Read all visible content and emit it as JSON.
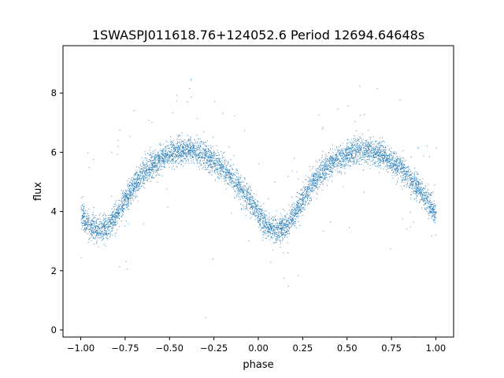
{
  "chart_data": {
    "type": "scatter",
    "title": "1SWASPJ011618.76+124052.6 Period 12694.64648s",
    "xlabel": "phase",
    "ylabel": "flux",
    "xlim": [
      -1.1,
      1.1
    ],
    "ylim": [
      -0.24,
      9.6
    ],
    "grid": false,
    "legend": "none",
    "x_ticks": [
      {
        "value": -1.0,
        "label": "−1.00"
      },
      {
        "value": -0.75,
        "label": "−0.75"
      },
      {
        "value": -0.5,
        "label": "−0.50"
      },
      {
        "value": -0.25,
        "label": "−0.25"
      },
      {
        "value": 0.0,
        "label": "0.00"
      },
      {
        "value": 0.25,
        "label": "0.25"
      },
      {
        "value": 0.5,
        "label": "0.50"
      },
      {
        "value": 0.75,
        "label": "0.75"
      },
      {
        "value": 1.0,
        "label": "1.00"
      }
    ],
    "y_ticks": [
      {
        "value": 0,
        "label": "0"
      },
      {
        "value": 2,
        "label": "2"
      },
      {
        "value": 4,
        "label": "4"
      },
      {
        "value": 6,
        "label": "6"
      },
      {
        "value": 8,
        "label": "8"
      }
    ],
    "series": [
      {
        "name": "flux",
        "color": "#1f77b4",
        "phase_range": [
          -1.0,
          1.0
        ],
        "point_count_approx": 6000,
        "scatter_sd": 0.22,
        "outlier_fraction": 0.02,
        "binned_phase": [
          0.0,
          0.05,
          0.1,
          0.15,
          0.2,
          0.25,
          0.3,
          0.35,
          0.4,
          0.45,
          0.5,
          0.55,
          0.6,
          0.65,
          0.7,
          0.75,
          0.8,
          0.85,
          0.9,
          0.95,
          1.0
        ],
        "binned_flux": [
          3.9,
          3.5,
          3.4,
          3.5,
          3.9,
          4.4,
          4.9,
          5.3,
          5.6,
          5.8,
          5.95,
          6.05,
          6.1,
          6.05,
          5.9,
          5.7,
          5.45,
          5.15,
          4.8,
          4.4,
          3.9
        ]
      }
    ]
  }
}
